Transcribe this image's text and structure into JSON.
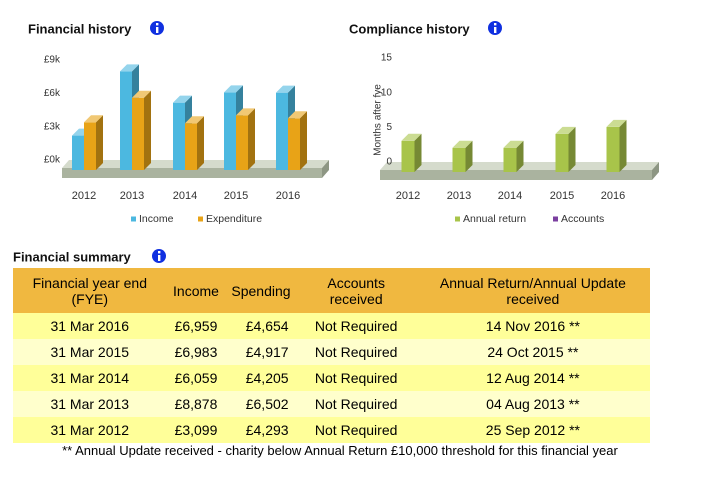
{
  "chart_data": [
    {
      "type": "bar",
      "title": "Financial history",
      "categories": [
        "2012",
        "2013",
        "2014",
        "2015",
        "2016"
      ],
      "series": [
        {
          "name": "Income",
          "color": "#4cb8e0",
          "values": [
            3.099,
            8.878,
            6.059,
            6.983,
            6.959
          ]
        },
        {
          "name": "Expenditure",
          "color": "#e8a317",
          "values": [
            4.293,
            6.502,
            4.205,
            4.917,
            4.654
          ]
        }
      ],
      "ylim": [
        0,
        10
      ],
      "yticks": [
        {
          "value": 0,
          "label": "£0k"
        },
        {
          "value": 3,
          "label": "£3k"
        },
        {
          "value": 6,
          "label": "£6k"
        },
        {
          "value": 9,
          "label": "£9k"
        }
      ]
    },
    {
      "type": "bar",
      "title": "Compliance history",
      "y_label": "Months after fye",
      "categories": [
        "2012",
        "2013",
        "2014",
        "2015",
        "2016"
      ],
      "series": [
        {
          "name": "Annual return",
          "color": "#a8c44a",
          "values": [
            4.5,
            3.5,
            3.5,
            5.5,
            6.5
          ]
        },
        {
          "name": "Accounts",
          "color": "#7b3fa0",
          "values": [
            null,
            null,
            null,
            null,
            null
          ]
        }
      ],
      "ylim": [
        0,
        15
      ],
      "yticks": [
        0,
        5,
        10,
        15
      ]
    }
  ],
  "summary": {
    "heading": "Financial summary",
    "columns": [
      "Financial year end (FYE)",
      "Income",
      "Spending",
      "Accounts received",
      "Annual Return/Annual Update received"
    ],
    "rows": [
      [
        "31 Mar 2016",
        "£6,959",
        "£4,654",
        "Not Required",
        "14 Nov 2016 **"
      ],
      [
        "31 Mar 2015",
        "£6,983",
        "£4,917",
        "Not Required",
        "24 Oct 2015 **"
      ],
      [
        "31 Mar 2014",
        "£6,059",
        "£4,205",
        "Not Required",
        "12 Aug 2014 **"
      ],
      [
        "31 Mar 2013",
        "£8,878",
        "£6,502",
        "Not Required",
        "04 Aug 2013 **"
      ],
      [
        "31 Mar 2012",
        "£3,099",
        "£4,293",
        "Not Required",
        "25 Sep 2012 **"
      ]
    ],
    "footnote": "** Annual Update received - charity below Annual Return £10,000 threshold for this financial year"
  }
}
